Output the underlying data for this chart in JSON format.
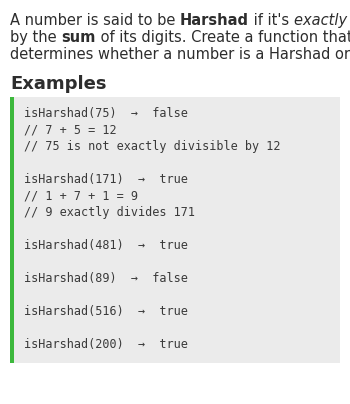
{
  "bg_color": "#ffffff",
  "code_bg": "#ebebeb",
  "code_border_color": "#3cb83c",
  "text_color": "#2d2d2d",
  "code_text_color": "#3a3a3a",
  "desc_fontsize": 10.5,
  "title_fontsize": 13.0,
  "code_fontsize": 8.5,
  "code_lines": [
    "isHarshad(75)  →  false",
    "// 7 + 5 = 12",
    "// 75 is not exactly divisible by 12",
    "",
    "isHarshad(171)  →  true",
    "// 1 + 7 + 1 = 9",
    "// 9 exactly divides 171",
    "",
    "isHarshad(481)  →  true",
    "",
    "isHarshad(89)  →  false",
    "",
    "isHarshad(516)  →  true",
    "",
    "isHarshad(200)  →  true"
  ]
}
